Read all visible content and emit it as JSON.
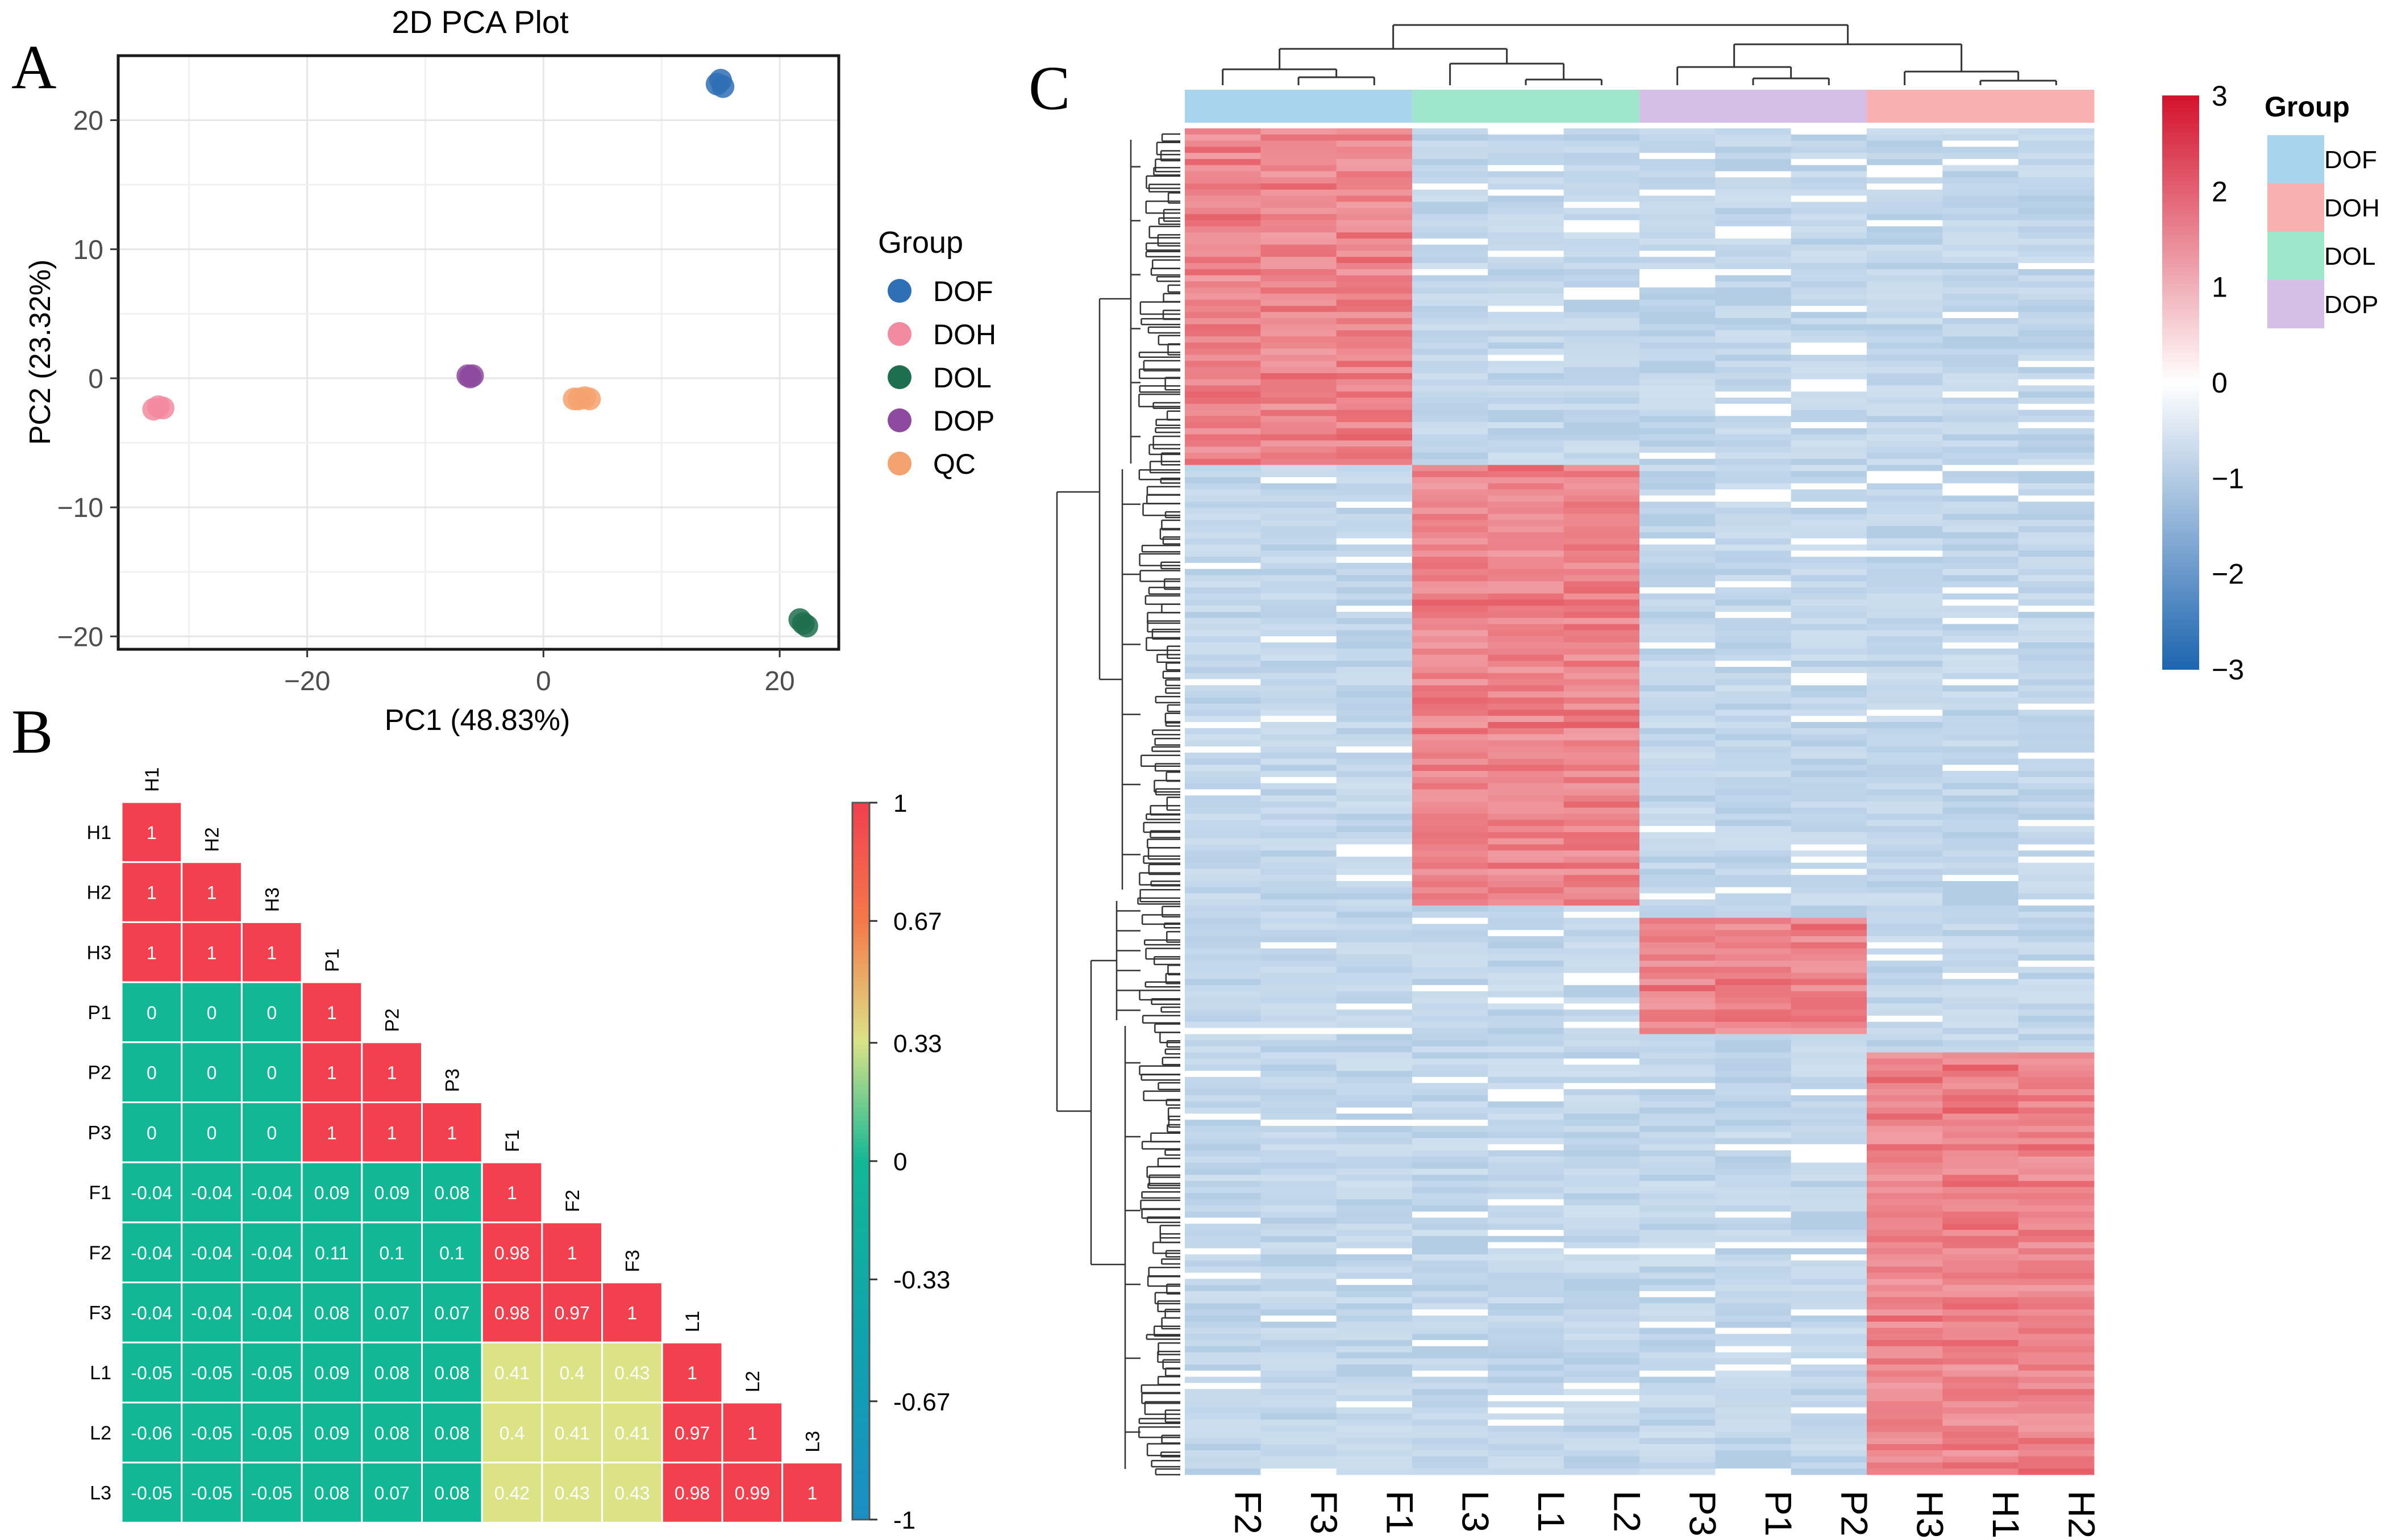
{
  "panel_labels": {
    "a": "A",
    "b": "B",
    "c": "C"
  },
  "chart_data": [
    {
      "type": "scatter",
      "title": "2D PCA Plot",
      "xlabel": "PC1 (48.83%)",
      "ylabel": "PC2 (23.32%)",
      "xlim": [
        -36,
        25
      ],
      "ylim": [
        -21,
        25
      ],
      "x_ticks": [
        -20,
        0,
        20
      ],
      "x_tick_labels": [
        "−20",
        "0",
        "20"
      ],
      "y_ticks": [
        -20,
        -10,
        0,
        10,
        20
      ],
      "y_tick_labels": [
        "−20",
        "−10",
        "0",
        "10",
        "20"
      ],
      "grid": true,
      "legend_title": "Group",
      "legend_position": "right",
      "series": [
        {
          "name": "DOF",
          "color": "#2f6fb5",
          "points": [
            [
              14.7,
              22.8
            ],
            [
              15.0,
              23.1
            ],
            [
              15.2,
              22.6
            ]
          ]
        },
        {
          "name": "DOH",
          "color": "#f28aa0",
          "points": [
            [
              -33.0,
              -2.4
            ],
            [
              -32.6,
              -2.2
            ],
            [
              -32.2,
              -2.3
            ]
          ]
        },
        {
          "name": "DOL",
          "color": "#1e6f4f",
          "points": [
            [
              21.7,
              -18.7
            ],
            [
              22.0,
              -19.0
            ],
            [
              22.3,
              -19.2
            ]
          ]
        },
        {
          "name": "DOP",
          "color": "#8d4a9e",
          "points": [
            [
              -6.4,
              0.2
            ],
            [
              -6.2,
              0.1
            ],
            [
              -6.0,
              0.2
            ]
          ]
        },
        {
          "name": "QC",
          "color": "#f4a26f",
          "points": [
            [
              2.6,
              -1.6
            ],
            [
              3.0,
              -1.6
            ],
            [
              3.5,
              -1.5
            ],
            [
              3.9,
              -1.6
            ]
          ]
        }
      ]
    },
    {
      "type": "heatmap",
      "subtype": "lower-triangle correlation",
      "labels": [
        "H1",
        "H2",
        "H3",
        "P1",
        "P2",
        "P3",
        "F1",
        "F2",
        "F3",
        "L1",
        "L2",
        "L3"
      ],
      "matrix": [
        [
          "1"
        ],
        [
          "1",
          "1"
        ],
        [
          "1",
          "1",
          "1"
        ],
        [
          "0",
          "0",
          "0",
          "1"
        ],
        [
          "0",
          "0",
          "0",
          "1",
          "1"
        ],
        [
          "0",
          "0",
          "0",
          "1",
          "1",
          "1"
        ],
        [
          "-0.04",
          "-0.04",
          "-0.04",
          "0.09",
          "0.09",
          "0.08",
          "1"
        ],
        [
          "-0.04",
          "-0.04",
          "-0.04",
          "0.11",
          "0.1",
          "0.1",
          "0.98",
          "1"
        ],
        [
          "-0.04",
          "-0.04",
          "-0.04",
          "0.08",
          "0.07",
          "0.07",
          "0.98",
          "0.97",
          "1"
        ],
        [
          "-0.05",
          "-0.05",
          "-0.05",
          "0.09",
          "0.08",
          "0.08",
          "0.41",
          "0.4",
          "0.43",
          "1"
        ],
        [
          "-0.06",
          "-0.05",
          "-0.05",
          "0.09",
          "0.08",
          "0.08",
          "0.4",
          "0.41",
          "0.41",
          "0.97",
          "1"
        ],
        [
          "-0.05",
          "-0.05",
          "-0.05",
          "0.08",
          "0.07",
          "0.08",
          "0.42",
          "0.43",
          "0.43",
          "0.98",
          "0.99",
          "1"
        ]
      ],
      "colorbar_ticks": [
        1,
        0.67,
        0.33,
        0,
        -0.33,
        -0.67,
        -1
      ],
      "colorbar_tick_labels": [
        "1",
        "0.67",
        "0.33",
        "0",
        "-0.33",
        "-0.67",
        "-1"
      ],
      "colors": {
        "low": "#1c8ec4",
        "mid": "#12b896",
        "midhigh": "#dce386",
        "high": "#f2404f"
      }
    },
    {
      "type": "heatmap",
      "subtype": "clustered heatmap",
      "columns": [
        "F2",
        "F3",
        "F1",
        "L3",
        "L1",
        "L2",
        "P3",
        "P1",
        "P2",
        "H3",
        "H1",
        "H2"
      ],
      "column_groups": [
        "DOF",
        "DOF",
        "DOF",
        "DOL",
        "DOL",
        "DOL",
        "DOP",
        "DOP",
        "DOP",
        "DOH",
        "DOH",
        "DOH"
      ],
      "group_colors": {
        "DOF": "#a8d4ee",
        "DOH": "#f8b0b0",
        "DOL": "#9ee6cc",
        "DOP": "#d6bfe6"
      },
      "cluster_blocks": [
        {
          "group": "DOF",
          "row_start": 0.0,
          "row_end": 0.25
        },
        {
          "group": "DOL",
          "row_start": 0.25,
          "row_end": 0.575
        },
        {
          "group": "DOP",
          "row_start": 0.585,
          "row_end": 0.67
        },
        {
          "group": "DOH",
          "row_start": 0.685,
          "row_end": 1.0
        }
      ],
      "colorbar_ticks": [
        3,
        2,
        1,
        0,
        -1,
        -2,
        -3
      ],
      "colorbar_tick_labels": [
        "3",
        "2",
        "1",
        "0",
        "−1",
        "−2",
        "−3"
      ],
      "legend_title": "Group",
      "legend_entries": [
        "DOF",
        "DOH",
        "DOL",
        "DOP"
      ],
      "colors": {
        "low": "#1f66b0",
        "mid": "#ffffff",
        "high": "#d4142e",
        "base": "#cfe0ef",
        "hot": "#e4505a"
      }
    }
  ]
}
